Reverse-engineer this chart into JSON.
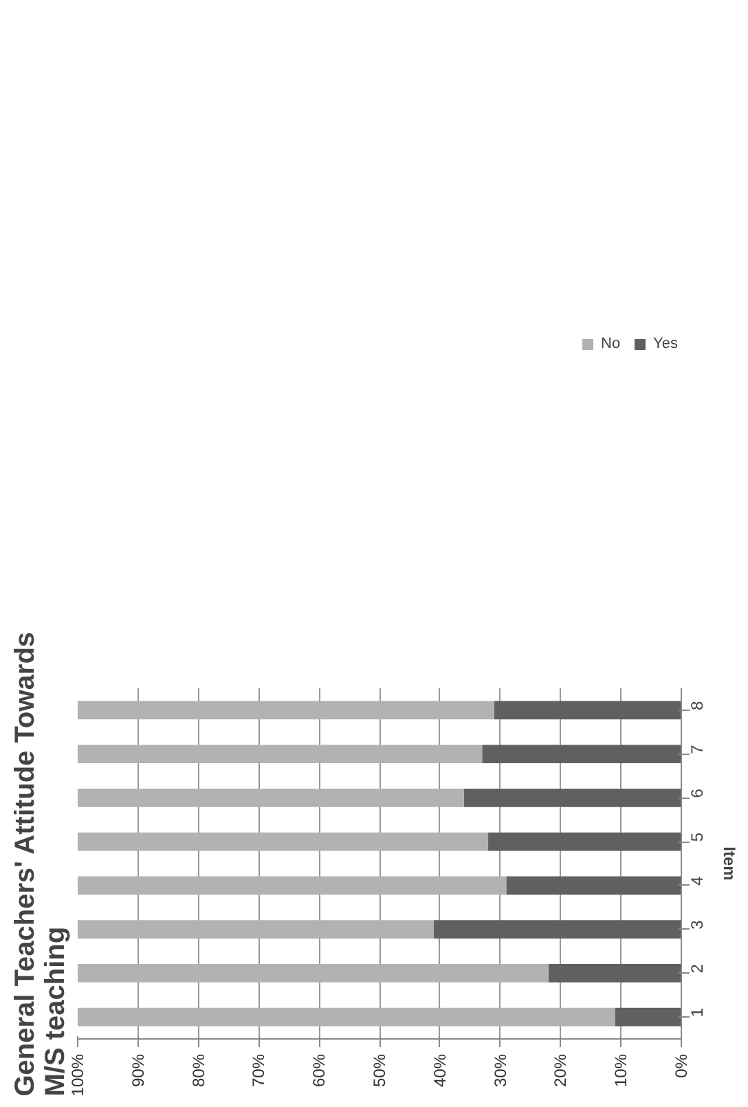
{
  "chart_data": {
    "type": "bar",
    "orientation": "horizontal",
    "stacked": true,
    "title": "General Teachers' Attitude Towards M/S teaching",
    "ylabel": "Item",
    "categories": [
      "8",
      "7",
      "6",
      "5",
      "4",
      "3",
      "2",
      "1"
    ],
    "series": [
      {
        "name": "Yes",
        "color": "#606060",
        "values": [
          31,
          33,
          36,
          32,
          29,
          41,
          22,
          11
        ]
      },
      {
        "name": "No",
        "color": "#b2b2b2",
        "values": [
          69,
          67,
          64,
          68,
          71,
          59,
          78,
          89
        ]
      }
    ],
    "xlim": [
      100,
      0
    ],
    "xticks": [
      {
        "value": 0,
        "label": "0%"
      },
      {
        "value": 10,
        "label": "10%"
      },
      {
        "value": 20,
        "label": "20%"
      },
      {
        "value": 30,
        "label": "30%"
      },
      {
        "value": 40,
        "label": "40%"
      },
      {
        "value": 50,
        "label": "50%"
      },
      {
        "value": 60,
        "label": "60%"
      },
      {
        "value": 70,
        "label": "70%"
      },
      {
        "value": 80,
        "label": "80%"
      },
      {
        "value": 90,
        "label": "90%"
      },
      {
        "value": 100,
        "label": "100%"
      }
    ],
    "grid": "x",
    "legend": "top right"
  }
}
